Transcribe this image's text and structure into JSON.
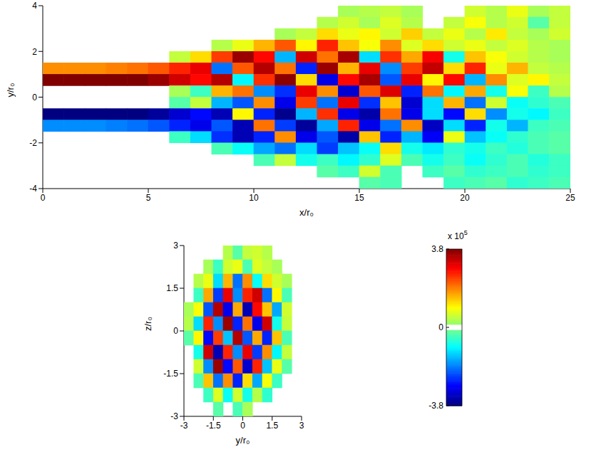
{
  "chart_data": [
    {
      "type": "heatmap",
      "xlabel": "x/r₀",
      "ylabel": "y/r₀",
      "xlim": [
        0,
        25
      ],
      "ylim": [
        -4,
        4
      ],
      "xticks": [
        0,
        5,
        10,
        15,
        20,
        25
      ],
      "yticks": [
        -4,
        -2,
        0,
        2,
        4
      ],
      "x": [
        0.5,
        1.5,
        2.5,
        3.5,
        4.5,
        5.5,
        6.5,
        7.5,
        8.5,
        9.5,
        10.5,
        11.5,
        12.5,
        13.5,
        14.5,
        15.5,
        16.5,
        17.5,
        18.5,
        19.5,
        20.5,
        21.5,
        22.5,
        23.5,
        24.5
      ],
      "y": [
        3.75,
        3.25,
        2.75,
        2.25,
        1.75,
        1.25,
        0.75,
        0.25,
        -0.25,
        -0.75,
        -1.25,
        -1.75,
        -2.25,
        -2.75,
        -3.25,
        -3.75
      ],
      "cells": [
        [
          null,
          null,
          null,
          null,
          null,
          null,
          null,
          null,
          null,
          null,
          null,
          null,
          null,
          null,
          0.3,
          0.4,
          0.5,
          0.3,
          null,
          null,
          0.6,
          0.4,
          0.8,
          0.3,
          0.5
        ],
        [
          null,
          null,
          null,
          null,
          null,
          null,
          null,
          null,
          null,
          null,
          null,
          null,
          null,
          0.4,
          0.6,
          0.3,
          0.7,
          0.4,
          null,
          0.5,
          0.9,
          0.4,
          0.6,
          -0.3,
          0.5
        ],
        [
          null,
          null,
          null,
          null,
          null,
          null,
          null,
          null,
          null,
          null,
          null,
          0.3,
          0.5,
          1.2,
          0.8,
          1.0,
          0.6,
          1.3,
          0.5,
          0.8,
          0.4,
          1.1,
          0.5,
          0.3,
          0.6
        ],
        [
          null,
          null,
          null,
          null,
          null,
          null,
          null,
          null,
          0.4,
          0.8,
          1.5,
          2.2,
          1.0,
          2.6,
          1.4,
          0.9,
          1.8,
          0.7,
          1.2,
          0.6,
          0.8,
          0.5,
          0.7,
          0.4,
          0.3
        ],
        [
          null,
          null,
          null,
          null,
          null,
          null,
          0.5,
          1.2,
          2.4,
          3.6,
          2.8,
          -1.5,
          3.2,
          2.0,
          3.5,
          -1.2,
          2.5,
          1.6,
          2.9,
          -0.8,
          1.4,
          0.9,
          0.6,
          0.4,
          0.3
        ],
        [
          1.8,
          1.8,
          1.8,
          1.9,
          2.0,
          2.2,
          2.6,
          3.0,
          -2.0,
          2.2,
          3.4,
          2.0,
          -2.6,
          3.6,
          1.5,
          3.0,
          -1.8,
          2.4,
          3.3,
          1.2,
          2.6,
          0.8,
          1.5,
          0.5,
          0.4
        ],
        [
          3.8,
          3.8,
          3.8,
          3.8,
          3.8,
          3.6,
          3.2,
          2.8,
          3.4,
          -1.0,
          2.5,
          3.7,
          1.2,
          -3.0,
          2.8,
          3.5,
          -2.2,
          3.0,
          1.0,
          2.8,
          -1.5,
          1.8,
          0.7,
          1.0,
          0.5
        ],
        [
          null,
          null,
          null,
          null,
          null,
          null,
          0.3,
          -0.5,
          1.5,
          2.0,
          -1.8,
          -2.5,
          3.0,
          1.8,
          -3.2,
          2.2,
          3.1,
          -2.6,
          2.0,
          -1.0,
          1.6,
          -0.8,
          0.9,
          -0.5,
          0.4
        ],
        [
          null,
          null,
          null,
          null,
          null,
          null,
          -0.3,
          0.5,
          -1.5,
          -2.2,
          1.8,
          -3.0,
          2.4,
          -2.0,
          3.0,
          -2.5,
          1.4,
          -3.2,
          -1.2,
          1.5,
          -2.0,
          0.6,
          -0.9,
          -0.6,
          -0.4
        ],
        [
          -3.8,
          -3.8,
          -3.8,
          -3.8,
          -3.8,
          -3.6,
          -3.2,
          -2.8,
          -3.4,
          1.0,
          -2.6,
          -3.7,
          -1.5,
          2.5,
          -3.0,
          -3.5,
          2.0,
          -3.0,
          -1.2,
          -2.8,
          1.2,
          -1.8,
          -0.8,
          -1.0,
          -0.5
        ],
        [
          -1.8,
          -1.8,
          -1.8,
          -1.9,
          -2.0,
          -2.2,
          -2.6,
          -3.0,
          -2.2,
          -3.4,
          2.0,
          -2.4,
          -3.6,
          -1.6,
          2.6,
          -3.0,
          -2.0,
          1.8,
          -3.3,
          -1.2,
          -2.6,
          -0.8,
          -1.5,
          -0.5,
          -0.4
        ],
        [
          null,
          null,
          null,
          null,
          null,
          null,
          -0.5,
          -1.2,
          -2.5,
          -3.4,
          -2.6,
          1.8,
          -3.0,
          -2.2,
          -3.5,
          1.4,
          -2.6,
          -1.5,
          -2.9,
          0.8,
          -1.4,
          -0.9,
          -0.6,
          -0.4,
          -0.3
        ],
        [
          null,
          null,
          null,
          null,
          null,
          null,
          null,
          null,
          -0.4,
          -0.9,
          -1.6,
          -2.0,
          -1.2,
          -2.4,
          -1.4,
          -0.9,
          1.2,
          -0.8,
          -1.1,
          -0.6,
          -0.8,
          -0.5,
          -0.7,
          -0.4,
          -0.3
        ],
        [
          null,
          null,
          null,
          null,
          null,
          null,
          null,
          null,
          null,
          null,
          -0.4,
          0.5,
          -0.8,
          -0.5,
          -1.0,
          -0.6,
          0.7,
          -0.4,
          -0.8,
          -0.5,
          -0.9,
          -0.6,
          -0.4,
          -0.7,
          -0.5
        ],
        [
          null,
          null,
          null,
          null,
          null,
          null,
          null,
          null,
          null,
          null,
          null,
          null,
          null,
          -0.3,
          -0.5,
          0.6,
          -0.4,
          null,
          -0.5,
          -0.3,
          -0.6,
          -0.5,
          -0.4,
          -0.6,
          -0.5
        ],
        [
          null,
          null,
          null,
          null,
          null,
          null,
          null,
          null,
          null,
          null,
          null,
          null,
          null,
          null,
          null,
          -0.3,
          -0.4,
          null,
          null,
          -0.5,
          -0.4,
          -0.3,
          -0.6,
          -0.5,
          -0.4
        ]
      ]
    },
    {
      "type": "heatmap",
      "xlabel": "y/r₀",
      "ylabel": "z/r₀",
      "xlim": [
        -3,
        3
      ],
      "ylim": [
        -3,
        3
      ],
      "xticks": [
        -3,
        -1.5,
        0,
        1.5,
        3
      ],
      "yticks": [
        -3,
        -1.5,
        0,
        1.5,
        3
      ],
      "x": [
        -2.75,
        -2.25,
        -1.75,
        -1.25,
        -0.75,
        -0.25,
        0.25,
        0.75,
        1.25,
        1.75,
        2.25,
        2.75
      ],
      "y": [
        2.75,
        2.25,
        1.75,
        1.25,
        0.75,
        0.25,
        -0.25,
        -0.75,
        -1.25,
        -1.75,
        -2.25,
        -2.75
      ],
      "cells": [
        [
          null,
          null,
          null,
          null,
          0.4,
          -0.3,
          0.5,
          0.6,
          0.4,
          null,
          null,
          null
        ],
        [
          null,
          null,
          0.3,
          -0.5,
          0.6,
          0.8,
          -0.4,
          0.7,
          0.5,
          0.3,
          null,
          null
        ],
        [
          null,
          0.4,
          0.8,
          -1.2,
          1.5,
          -2.0,
          1.8,
          -0.9,
          1.2,
          0.6,
          0.3,
          null
        ],
        [
          null,
          -0.5,
          1.6,
          -2.4,
          3.0,
          -1.8,
          2.6,
          3.2,
          -2.0,
          1.0,
          -0.4,
          null
        ],
        [
          0.3,
          0.9,
          -2.2,
          3.4,
          -3.0,
          1.6,
          -3.4,
          2.8,
          1.4,
          -1.6,
          0.6,
          null
        ],
        [
          0.4,
          -1.2,
          2.6,
          -1.8,
          3.6,
          -2.6,
          2.0,
          -3.0,
          3.2,
          -0.8,
          0.5,
          null
        ],
        [
          -0.3,
          1.0,
          -2.8,
          2.4,
          -1.4,
          3.4,
          -2.2,
          1.6,
          -2.6,
          1.4,
          -0.4,
          null
        ],
        [
          null,
          -0.8,
          3.2,
          -3.4,
          2.6,
          -1.8,
          3.0,
          -2.4,
          1.8,
          -1.0,
          0.5,
          null
        ],
        [
          null,
          0.6,
          -1.8,
          3.6,
          -2.8,
          2.2,
          -3.2,
          2.6,
          -1.4,
          0.8,
          -0.3,
          null
        ],
        [
          null,
          -0.4,
          1.4,
          -2.0,
          1.8,
          -2.6,
          1.2,
          -1.6,
          0.9,
          -0.5,
          null,
          null
        ],
        [
          null,
          null,
          -0.5,
          0.7,
          -0.9,
          0.6,
          -0.8,
          0.4,
          -0.6,
          null,
          null,
          null
        ],
        [
          null,
          null,
          null,
          -0.3,
          null,
          -0.4,
          0.3,
          null,
          null,
          null,
          null,
          null
        ]
      ],
      "colorbar": {
        "range": [
          -3.8,
          3.8
        ],
        "ticks": [
          -3.8,
          0,
          3.8
        ],
        "label": "x 10",
        "exponent": 5
      }
    }
  ]
}
